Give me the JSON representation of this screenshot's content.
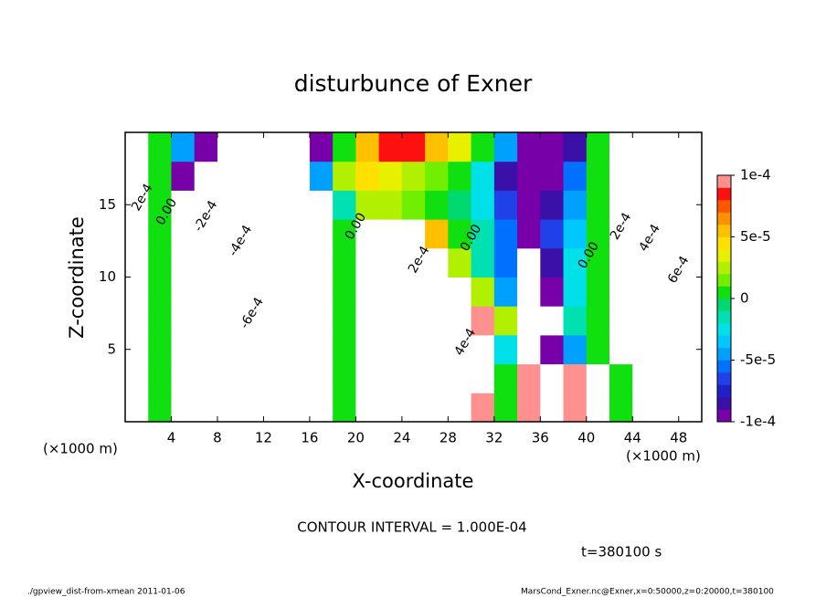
{
  "chart_data": {
    "type": "contour",
    "title": "disturbunce of Exner",
    "xlabel": "X-coordinate",
    "ylabel": "Z-coordinate",
    "x_unit_label": "(×1000 m)",
    "y_unit_label": "(×1000 m)",
    "contour_interval": "CONTOUR INTERVAL = 1.000E-04",
    "time_label": "t=380100 s",
    "footer_left": "./gpview_dist-from-xmean  2011-01-06",
    "footer_right": "MarsCond_Exner.nc@Exner,x=0:50000,z=0:20000,t=380100",
    "xlim": [
      0,
      50
    ],
    "ylim": [
      0,
      20
    ],
    "xticks": [
      4,
      8,
      12,
      16,
      20,
      24,
      28,
      32,
      36,
      40,
      44,
      48
    ],
    "yticks": [
      5,
      10,
      15
    ],
    "x": [
      1,
      3,
      5,
      7,
      9,
      11,
      13,
      15,
      17,
      19,
      21,
      23,
      25,
      27,
      29,
      31,
      33,
      35,
      37,
      39,
      41,
      43,
      45,
      47,
      49
    ],
    "z": [
      1,
      3,
      5,
      7,
      9,
      11,
      13,
      15,
      17,
      19
    ],
    "values": [
      [
        0.0002,
        0,
        -0.0002,
        -0.0003,
        -0.00035,
        -0.0004,
        -0.00035,
        -0.00025,
        -0.00015,
        0,
        0.0002,
        0.00025,
        0.00025,
        0.00025,
        0.0002,
        0.0001,
        0,
        0.0001,
        0.00015,
        0.0001,
        0.00015,
        0,
        0.0003,
        0.0004,
        0.0005
      ],
      [
        0.0002,
        0,
        -0.0002,
        -0.00035,
        -0.0004,
        -0.00045,
        -0.0004,
        -0.0003,
        -0.00015,
        0,
        0.0002,
        0.0003,
        0.0003,
        0.0003,
        0.00025,
        0.00015,
        0,
        0.0001,
        0.00015,
        0.0001,
        0.00015,
        0,
        0.0003,
        0.0004,
        0.0005
      ],
      [
        0.0003,
        0,
        -0.0003,
        -0.00045,
        -0.0005,
        -0.0005,
        -0.00045,
        -0.0003,
        -0.00015,
        0,
        0.00025,
        0.0004,
        0.0004,
        0.0004,
        0.0003,
        0.00015,
        -3e-05,
        -0.00015,
        -9e-05,
        -5e-05,
        0,
        0.0002,
        0.00035,
        0.0005,
        0.0006
      ],
      [
        0.0003,
        0,
        -0.0003,
        -0.0005,
        -0.0006,
        -0.0006,
        -0.0005,
        -0.00035,
        -0.00015,
        0,
        0.00025,
        0.00035,
        0.0004,
        0.00035,
        0.00025,
        0.0001,
        2e-05,
        -0.00015,
        -0.00012,
        -2e-05,
        0,
        0.00025,
        0.0004,
        0.0006,
        0.0007
      ],
      [
        0.0003,
        0,
        -0.0003,
        -0.0005,
        -0.0006,
        -0.00065,
        -0.00055,
        -0.0004,
        -0.0002,
        0,
        0.00025,
        0.0003,
        0.0003,
        0.00025,
        0.00015,
        2e-05,
        -5e-05,
        -0.00015,
        -9e-05,
        -3e-05,
        0,
        0.00025,
        0.00045,
        0.0006,
        0.0006
      ],
      [
        0.0003,
        0,
        -0.00025,
        -0.0004,
        -0.0005,
        -0.00055,
        -0.0005,
        -0.0004,
        -0.0002,
        0,
        0.0002,
        0.00025,
        0.0002,
        0.00015,
        2e-05,
        -2e-05,
        -6e-05,
        -0.00015,
        -8e-05,
        -3e-05,
        0,
        0.00025,
        0.00045,
        0.0006,
        0.0005
      ],
      [
        0.0003,
        0,
        -0.0002,
        -0.00035,
        -0.00045,
        -0.00045,
        -0.0004,
        -0.0003,
        -0.0002,
        0,
        0.00015,
        0.0002,
        0.00015,
        5e-05,
        0,
        -2e-05,
        -6e-05,
        -9e-05,
        -7e-05,
        -4e-05,
        0,
        0.00025,
        0.0004,
        0.0005,
        0.0004
      ],
      [
        0.0003,
        0,
        -0.00015,
        -0.0003,
        -0.00035,
        -0.00035,
        -0.0003,
        -0.00025,
        -0.00015,
        -2e-05,
        2e-05,
        2e-05,
        1e-05,
        5e-06,
        -1e-05,
        -3e-05,
        -7e-05,
        -9e-05,
        -8e-05,
        -5e-05,
        0,
        0.0002,
        0.00035,
        0.0004,
        0.00035
      ],
      [
        0.0003,
        0,
        -0.0001,
        -0.0002,
        -0.00025,
        -0.00025,
        -0.0002,
        -0.00015,
        -5e-05,
        2e-05,
        4e-05,
        3e-05,
        2e-05,
        1e-05,
        0,
        -3e-05,
        -8e-05,
        -0.0001,
        -9e-05,
        -6e-05,
        0,
        0.0002,
        0.0003,
        0.0003,
        0.0003
      ],
      [
        0.0003,
        0,
        -5e-05,
        -0.0001,
        -0.00015,
        -0.0002,
        -0.0002,
        -0.00015,
        -0.0001,
        0,
        5e-05,
        8e-05,
        8e-05,
        5e-05,
        3e-05,
        0,
        -5e-05,
        -0.0001,
        -0.0001,
        -8e-05,
        0,
        0.00015,
        0.0002,
        0.0003,
        0.0003
      ]
    ],
    "colorbar": {
      "lim": [
        -0.0001,
        0.0001
      ],
      "ticks": [
        {
          "value": 0.0001,
          "label": "1e-4"
        },
        {
          "value": 5e-05,
          "label": "5e-5"
        },
        0,
        {
          "value": -5e-05,
          "label": "-5e-5"
        },
        {
          "value": -0.0001,
          "label": "-1e-4"
        }
      ],
      "colors": [
        "#7800a8",
        "#3a10a8",
        "#2020c8",
        "#2040e8",
        "#0070ff",
        "#00a0ff",
        "#00c8ff",
        "#00e0e8",
        "#00e0b0",
        "#00d870",
        "#10e010",
        "#70f000",
        "#b0f000",
        "#e8f000",
        "#ffe000",
        "#ffc000",
        "#ff9000",
        "#ff5800",
        "#ff1010",
        "#ff9090"
      ]
    },
    "contour_labels": [
      {
        "text": "2e-4",
        "x": 1.5,
        "z": 15.5
      },
      {
        "text": "0.00",
        "x": 3.6,
        "z": 14.5
      },
      {
        "text": "-2e-4",
        "x": 7,
        "z": 14.2
      },
      {
        "text": "-4e-4",
        "x": 10,
        "z": 12.5
      },
      {
        "text": "-6e-4",
        "x": 11,
        "z": 7.5
      },
      {
        "text": "0.00",
        "x": 20,
        "z": 13.5
      },
      {
        "text": "2e-4",
        "x": 25.5,
        "z": 11.2
      },
      {
        "text": "0.00",
        "x": 30,
        "z": 12.7
      },
      {
        "text": "4e-4",
        "x": 29.5,
        "z": 5.5
      },
      {
        "text": "0.00",
        "x": 40.2,
        "z": 11.5
      },
      {
        "text": "2e-4",
        "x": 43,
        "z": 13.5
      },
      {
        "text": "4e-4",
        "x": 45.5,
        "z": 12.7
      },
      {
        "text": "6e-4",
        "x": 48,
        "z": 10.5
      }
    ]
  }
}
